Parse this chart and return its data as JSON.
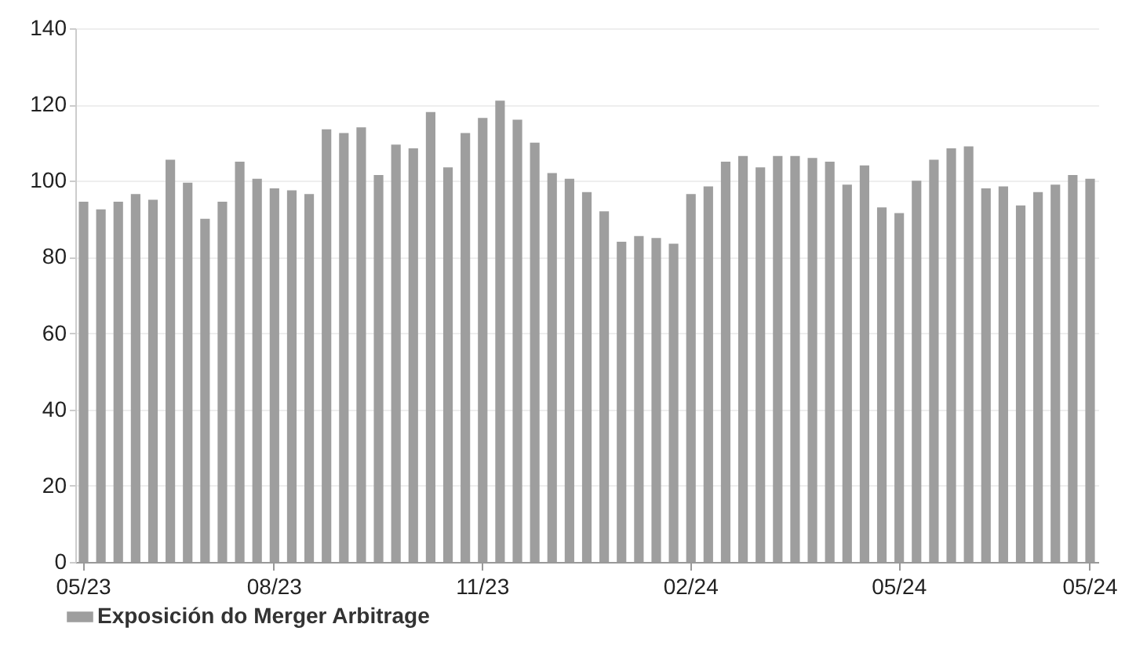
{
  "chart_data": {
    "type": "bar",
    "categories": [
      "05/23",
      null,
      null,
      null,
      null,
      null,
      null,
      null,
      null,
      null,
      null,
      "08/23",
      null,
      null,
      null,
      null,
      null,
      null,
      null,
      null,
      null,
      null,
      null,
      "11/23",
      null,
      null,
      null,
      null,
      null,
      null,
      null,
      null,
      null,
      null,
      null,
      "02/24",
      null,
      null,
      null,
      null,
      null,
      null,
      null,
      null,
      null,
      null,
      null,
      "05/24",
      null,
      null,
      null,
      null,
      null,
      null,
      null,
      null,
      null,
      null,
      "05/24"
    ],
    "series": [
      {
        "name": "Exposición do Merger Arbitrage",
        "color": "#9e9e9e",
        "values": [
          94.5,
          92.5,
          94.5,
          96.5,
          95,
          105.5,
          99.5,
          90,
          94.5,
          105,
          100.5,
          98,
          97.5,
          96.5,
          113.5,
          112.5,
          114,
          101.5,
          109.5,
          108.5,
          118,
          103.5,
          112.5,
          116.5,
          121,
          116,
          110,
          102,
          100.5,
          97,
          92,
          84,
          85.5,
          85,
          83.5,
          96.5,
          98.5,
          105,
          106.5,
          103.5,
          106.5,
          106.5,
          106,
          105,
          99,
          104,
          93,
          91.5,
          100,
          105.5,
          108.5,
          109,
          98,
          98.5,
          93.5,
          97,
          99,
          101.5,
          100.5
        ]
      }
    ],
    "ylim": [
      0,
      140
    ],
    "yticks": [
      0,
      20,
      40,
      60,
      80,
      100,
      120,
      140
    ],
    "grid": "y",
    "legend": "bottom left"
  }
}
